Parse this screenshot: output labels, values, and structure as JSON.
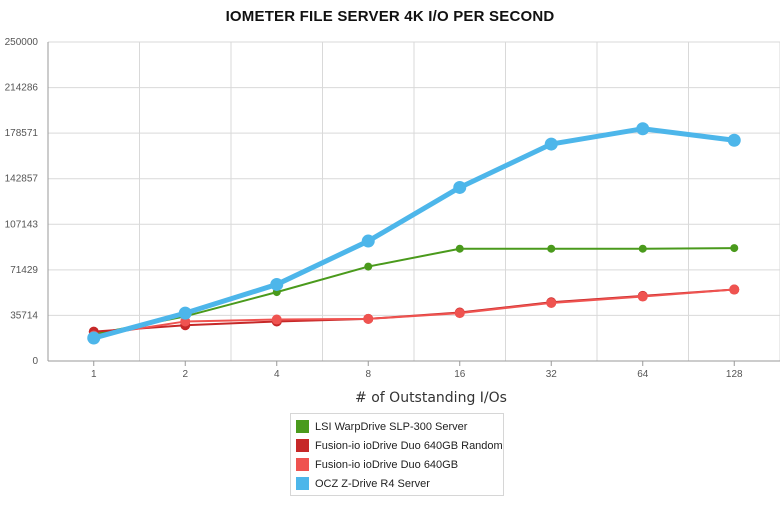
{
  "chart_data": {
    "type": "line",
    "title": "IOMETER FILE SERVER 4K I/O PER SECOND",
    "xlabel": "# of Outstanding I/Os",
    "ylabel": "",
    "categories": [
      "1",
      "2",
      "4",
      "8",
      "16",
      "32",
      "64",
      "128"
    ],
    "yticks": [
      "0",
      "35714",
      "71429",
      "107143",
      "142857",
      "178571",
      "214286",
      "250000"
    ],
    "ylim": [
      0,
      250000
    ],
    "grid": true,
    "legend_position": "bottom",
    "series": [
      {
        "name": "LSI WarpDrive SLP-300 Server",
        "color": "#4a9a1c",
        "values": [
          21000,
          35000,
          54000,
          74000,
          88000,
          88000,
          88000,
          88500
        ]
      },
      {
        "name": "Fusion-io ioDrive Duo 640GB Random",
        "color": "#c62828",
        "values": [
          23000,
          28000,
          31000,
          33000,
          38000,
          46000,
          51000,
          56000
        ]
      },
      {
        "name": "Fusion-io ioDrive Duo 640GB",
        "color": "#ef5350",
        "values": [
          20000,
          31000,
          32500,
          33000,
          37500,
          45500,
          50500,
          56000
        ]
      },
      {
        "name": "OCZ Z-Drive R4 Server",
        "color": "#4db6ea",
        "values": [
          18000,
          37500,
          60000,
          94000,
          136000,
          170000,
          182000,
          173000
        ]
      }
    ]
  }
}
